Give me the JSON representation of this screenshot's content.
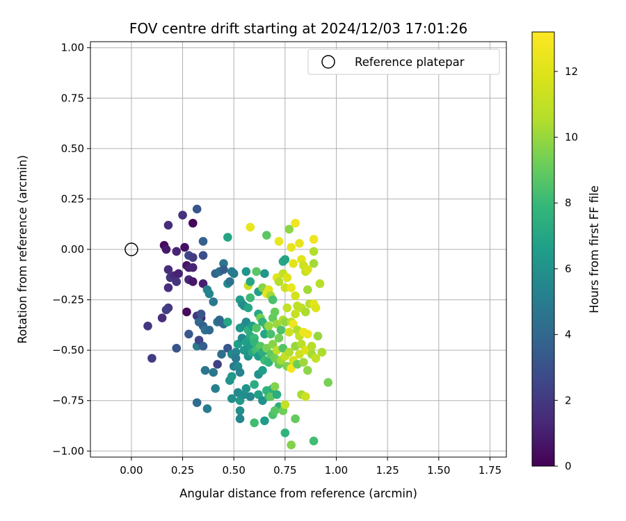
{
  "chart_data": {
    "type": "scatter",
    "title": "FOV centre drift starting at 2024/12/03 17:01:26",
    "xlabel": "Angular distance from reference (arcmin)",
    "ylabel": "Rotation from reference (arcmin)",
    "xlim": [
      -0.2,
      1.83
    ],
    "ylim": [
      -1.03,
      1.03
    ],
    "xticks": [
      "0.00",
      "0.25",
      "0.50",
      "0.75",
      "1.00",
      "1.25",
      "1.50",
      "1.75"
    ],
    "yticks": [
      "1.00",
      "0.75",
      "0.50",
      "0.25",
      "0.00",
      "−0.25",
      "−0.50",
      "−0.75",
      "−1.00"
    ],
    "grid": true,
    "legend": {
      "placement": "top-right",
      "entries": [
        "Reference platepar"
      ]
    },
    "colorbar": {
      "label": "Hours from first FF file",
      "range": [
        0,
        13.2
      ],
      "ticks": [
        "0",
        "2",
        "4",
        "6",
        "8",
        "10",
        "12"
      ],
      "colormap": "viridis"
    },
    "reference_point": {
      "x": 0.0,
      "y": 0.0
    },
    "points": [
      {
        "x": 0.16,
        "y": 0.02,
        "c": 0.3
      },
      {
        "x": 0.17,
        "y": 0.0,
        "c": 0.8
      },
      {
        "x": 0.18,
        "y": 0.12,
        "c": 1.5
      },
      {
        "x": 0.25,
        "y": 0.17,
        "c": 1.7
      },
      {
        "x": 0.3,
        "y": 0.13,
        "c": 0.2
      },
      {
        "x": 0.32,
        "y": 0.2,
        "c": 3.2
      },
      {
        "x": 0.22,
        "y": -0.01,
        "c": 1.2
      },
      {
        "x": 0.26,
        "y": 0.01,
        "c": 0.5
      },
      {
        "x": 0.28,
        "y": -0.03,
        "c": 2.5
      },
      {
        "x": 0.3,
        "y": -0.04,
        "c": 2.1
      },
      {
        "x": 0.35,
        "y": 0.04,
        "c": 3.6
      },
      {
        "x": 0.35,
        "y": -0.03,
        "c": 2.9
      },
      {
        "x": 0.18,
        "y": -0.1,
        "c": 1.5
      },
      {
        "x": 0.19,
        "y": -0.14,
        "c": 1.9
      },
      {
        "x": 0.18,
        "y": -0.19,
        "c": 1.6
      },
      {
        "x": 0.21,
        "y": -0.13,
        "c": 1.4
      },
      {
        "x": 0.23,
        "y": -0.12,
        "c": 1.1
      },
      {
        "x": 0.27,
        "y": -0.08,
        "c": 0.6
      },
      {
        "x": 0.28,
        "y": -0.09,
        "c": 0.9
      },
      {
        "x": 0.3,
        "y": -0.09,
        "c": 1.2
      },
      {
        "x": 0.28,
        "y": -0.15,
        "c": 1.3
      },
      {
        "x": 0.3,
        "y": -0.16,
        "c": 0.7
      },
      {
        "x": 0.35,
        "y": -0.17,
        "c": 1.0
      },
      {
        "x": 0.22,
        "y": -0.16,
        "c": 1.8
      },
      {
        "x": 0.37,
        "y": -0.2,
        "c": 5.2
      },
      {
        "x": 0.38,
        "y": -0.22,
        "c": 5.4
      },
      {
        "x": 0.41,
        "y": -0.12,
        "c": 3.8
      },
      {
        "x": 0.43,
        "y": -0.11,
        "c": 4.3
      },
      {
        "x": 0.45,
        "y": -0.07,
        "c": 4.6
      },
      {
        "x": 0.45,
        "y": -0.1,
        "c": 3.5
      },
      {
        "x": 0.47,
        "y": 0.06,
        "c": 6.9
      },
      {
        "x": 0.47,
        "y": -0.17,
        "c": 5.9
      },
      {
        "x": 0.48,
        "y": -0.16,
        "c": 4.4
      },
      {
        "x": 0.49,
        "y": -0.11,
        "c": 4.9
      },
      {
        "x": 0.5,
        "y": -0.12,
        "c": 5.0
      },
      {
        "x": 0.4,
        "y": -0.26,
        "c": 4.7
      },
      {
        "x": 0.18,
        "y": -0.29,
        "c": 1.9
      },
      {
        "x": 0.17,
        "y": -0.3,
        "c": 2.2
      },
      {
        "x": 0.15,
        "y": -0.34,
        "c": 1.5
      },
      {
        "x": 0.27,
        "y": -0.31,
        "c": 0.3
      },
      {
        "x": 0.32,
        "y": -0.33,
        "c": 2.0
      },
      {
        "x": 0.34,
        "y": -0.34,
        "c": 1.3
      },
      {
        "x": 0.34,
        "y": -0.32,
        "c": 3.2
      },
      {
        "x": 0.33,
        "y": -0.36,
        "c": 4.0
      },
      {
        "x": 0.35,
        "y": -0.38,
        "c": 3.6
      },
      {
        "x": 0.36,
        "y": -0.4,
        "c": 4.4
      },
      {
        "x": 0.38,
        "y": -0.4,
        "c": 4.0
      },
      {
        "x": 0.08,
        "y": -0.38,
        "c": 1.9
      },
      {
        "x": 0.1,
        "y": -0.54,
        "c": 2.1
      },
      {
        "x": 0.22,
        "y": -0.49,
        "c": 3.1
      },
      {
        "x": 0.28,
        "y": -0.42,
        "c": 3.3
      },
      {
        "x": 0.32,
        "y": -0.48,
        "c": 5.0
      },
      {
        "x": 0.33,
        "y": -0.45,
        "c": 2.5
      },
      {
        "x": 0.35,
        "y": -0.48,
        "c": 3.5
      },
      {
        "x": 0.36,
        "y": -0.6,
        "c": 4.6
      },
      {
        "x": 0.4,
        "y": -0.61,
        "c": 4.7
      },
      {
        "x": 0.42,
        "y": -0.57,
        "c": 2.3
      },
      {
        "x": 0.32,
        "y": -0.76,
        "c": 4.1
      },
      {
        "x": 0.37,
        "y": -0.79,
        "c": 4.9
      },
      {
        "x": 0.41,
        "y": -0.69,
        "c": 5.2
      },
      {
        "x": 0.42,
        "y": -0.36,
        "c": 4.4
      },
      {
        "x": 0.43,
        "y": -0.35,
        "c": 3.9
      },
      {
        "x": 0.45,
        "y": -0.37,
        "c": 4.2
      },
      {
        "x": 0.47,
        "y": -0.36,
        "c": 7.0
      },
      {
        "x": 0.44,
        "y": -0.52,
        "c": 4.3
      },
      {
        "x": 0.47,
        "y": -0.49,
        "c": 3.2
      },
      {
        "x": 0.49,
        "y": -0.52,
        "c": 5.6
      },
      {
        "x": 0.51,
        "y": -0.51,
        "c": 5.4
      },
      {
        "x": 0.51,
        "y": -0.54,
        "c": 4.8
      },
      {
        "x": 0.5,
        "y": -0.58,
        "c": 5.0
      },
      {
        "x": 0.52,
        "y": -0.58,
        "c": 5.6
      },
      {
        "x": 0.53,
        "y": -0.61,
        "c": 5.3
      },
      {
        "x": 0.48,
        "y": -0.65,
        "c": 6.1
      },
      {
        "x": 0.49,
        "y": -0.63,
        "c": 6.3
      },
      {
        "x": 0.52,
        "y": -0.71,
        "c": 5.6
      },
      {
        "x": 0.49,
        "y": -0.74,
        "c": 5.9
      },
      {
        "x": 0.53,
        "y": -0.75,
        "c": 6.3
      },
      {
        "x": 0.53,
        "y": -0.8,
        "c": 5.9
      },
      {
        "x": 0.53,
        "y": -0.84,
        "c": 5.5
      },
      {
        "x": 0.55,
        "y": -0.72,
        "c": 5.8
      },
      {
        "x": 0.56,
        "y": -0.69,
        "c": 6.1
      },
      {
        "x": 0.58,
        "y": -0.73,
        "c": 5.6
      },
      {
        "x": 0.6,
        "y": -0.86,
        "c": 8.2
      },
      {
        "x": 0.62,
        "y": -0.72,
        "c": 6.7
      },
      {
        "x": 0.64,
        "y": -0.75,
        "c": 5.9
      },
      {
        "x": 0.65,
        "y": -0.85,
        "c": 6.5
      },
      {
        "x": 0.62,
        "y": -0.62,
        "c": 6.1
      },
      {
        "x": 0.6,
        "y": -0.67,
        "c": 7.3
      },
      {
        "x": 0.64,
        "y": -0.6,
        "c": 6.6
      },
      {
        "x": 0.66,
        "y": -0.7,
        "c": 7.7
      },
      {
        "x": 0.67,
        "y": -0.73,
        "c": 8.0
      },
      {
        "x": 0.68,
        "y": -0.73,
        "c": 8.9
      },
      {
        "x": 0.69,
        "y": -0.69,
        "c": 7.4
      },
      {
        "x": 0.7,
        "y": -0.68,
        "c": 9.6
      },
      {
        "x": 0.71,
        "y": -0.72,
        "c": 7.4
      },
      {
        "x": 0.72,
        "y": -0.78,
        "c": 7.5
      },
      {
        "x": 0.69,
        "y": -0.82,
        "c": 8.4
      },
      {
        "x": 0.7,
        "y": -0.8,
        "c": 8.7
      },
      {
        "x": 0.74,
        "y": -0.8,
        "c": 9.2
      },
      {
        "x": 0.75,
        "y": -0.77,
        "c": 11.1
      },
      {
        "x": 0.75,
        "y": -0.91,
        "c": 7.7
      },
      {
        "x": 0.78,
        "y": -0.97,
        "c": 9.6
      },
      {
        "x": 0.8,
        "y": -0.84,
        "c": 9.0
      },
      {
        "x": 0.83,
        "y": -0.72,
        "c": 10.3
      },
      {
        "x": 0.85,
        "y": -0.73,
        "c": 11.3
      },
      {
        "x": 0.89,
        "y": -0.95,
        "c": 8.2
      },
      {
        "x": 0.96,
        "y": -0.66,
        "c": 9.4
      },
      {
        "x": 0.86,
        "y": -0.6,
        "c": 9.8
      },
      {
        "x": 0.53,
        "y": -0.25,
        "c": 6.6
      },
      {
        "x": 0.54,
        "y": -0.27,
        "c": 6.1
      },
      {
        "x": 0.55,
        "y": -0.28,
        "c": 5.8
      },
      {
        "x": 0.56,
        "y": -0.11,
        "c": 6.2
      },
      {
        "x": 0.57,
        "y": -0.18,
        "c": 11.2
      },
      {
        "x": 0.58,
        "y": -0.16,
        "c": 7.0
      },
      {
        "x": 0.58,
        "y": -0.24,
        "c": 8.1
      },
      {
        "x": 0.57,
        "y": -0.29,
        "c": 7.0
      },
      {
        "x": 0.58,
        "y": 0.11,
        "c": 12.4
      },
      {
        "x": 0.61,
        "y": -0.11,
        "c": 8.8
      },
      {
        "x": 0.62,
        "y": -0.21,
        "c": 6.7
      },
      {
        "x": 0.64,
        "y": -0.19,
        "c": 9.7
      },
      {
        "x": 0.65,
        "y": -0.12,
        "c": 6.2
      },
      {
        "x": 0.66,
        "y": 0.07,
        "c": 8.8
      },
      {
        "x": 0.66,
        "y": -0.22,
        "c": 12.3
      },
      {
        "x": 0.67,
        "y": -0.2,
        "c": 12.0
      },
      {
        "x": 0.68,
        "y": -0.23,
        "c": 10.2
      },
      {
        "x": 0.69,
        "y": -0.25,
        "c": 8.4
      },
      {
        "x": 0.71,
        "y": -0.14,
        "c": 12.2
      },
      {
        "x": 0.72,
        "y": -0.16,
        "c": 10.6
      },
      {
        "x": 0.72,
        "y": 0.04,
        "c": 12.4
      },
      {
        "x": 0.74,
        "y": -0.06,
        "c": 7.1
      },
      {
        "x": 0.74,
        "y": -0.12,
        "c": 11.0
      },
      {
        "x": 0.75,
        "y": -0.19,
        "c": 11.4
      },
      {
        "x": 0.75,
        "y": -0.05,
        "c": 6.9
      },
      {
        "x": 0.76,
        "y": -0.14,
        "c": 12.0
      },
      {
        "x": 0.77,
        "y": 0.1,
        "c": 9.8
      },
      {
        "x": 0.78,
        "y": 0.01,
        "c": 12.3
      },
      {
        "x": 0.78,
        "y": -0.19,
        "c": 12.4
      },
      {
        "x": 0.79,
        "y": -0.07,
        "c": 12.1
      },
      {
        "x": 0.8,
        "y": 0.13,
        "c": 12.7
      },
      {
        "x": 0.8,
        "y": -0.23,
        "c": 11.6
      },
      {
        "x": 0.81,
        "y": -0.28,
        "c": 10.8
      },
      {
        "x": 0.82,
        "y": 0.03,
        "c": 12.3
      },
      {
        "x": 0.83,
        "y": -0.05,
        "c": 12.1
      },
      {
        "x": 0.84,
        "y": -0.08,
        "c": 11.3
      },
      {
        "x": 0.85,
        "y": -0.11,
        "c": 11.1
      },
      {
        "x": 0.86,
        "y": -0.2,
        "c": 10.2
      },
      {
        "x": 0.86,
        "y": -0.1,
        "c": 11.7
      },
      {
        "x": 0.87,
        "y": -0.27,
        "c": 10.6
      },
      {
        "x": 0.89,
        "y": 0.05,
        "c": 12.6
      },
      {
        "x": 0.89,
        "y": -0.01,
        "c": 10.5
      },
      {
        "x": 0.89,
        "y": -0.07,
        "c": 10.2
      },
      {
        "x": 0.89,
        "y": -0.27,
        "c": 12.2
      },
      {
        "x": 0.9,
        "y": -0.29,
        "c": 11.9
      },
      {
        "x": 0.92,
        "y": -0.17,
        "c": 10.6
      },
      {
        "x": 0.53,
        "y": -0.39,
        "c": 6.3
      },
      {
        "x": 0.55,
        "y": -0.38,
        "c": 6.1
      },
      {
        "x": 0.56,
        "y": -0.36,
        "c": 5.7
      },
      {
        "x": 0.57,
        "y": -0.4,
        "c": 7.5
      },
      {
        "x": 0.58,
        "y": -0.43,
        "c": 7.3
      },
      {
        "x": 0.59,
        "y": -0.38,
        "c": 6.7
      },
      {
        "x": 0.6,
        "y": -0.44,
        "c": 8.1
      },
      {
        "x": 0.61,
        "y": -0.39,
        "c": 8.6
      },
      {
        "x": 0.62,
        "y": -0.32,
        "c": 7.1
      },
      {
        "x": 0.63,
        "y": -0.34,
        "c": 9.4
      },
      {
        "x": 0.64,
        "y": -0.36,
        "c": 7.6
      },
      {
        "x": 0.65,
        "y": -0.42,
        "c": 7.0
      },
      {
        "x": 0.66,
        "y": -0.38,
        "c": 8.0
      },
      {
        "x": 0.67,
        "y": -0.38,
        "c": 10.0
      },
      {
        "x": 0.68,
        "y": -0.42,
        "c": 8.4
      },
      {
        "x": 0.69,
        "y": -0.34,
        "c": 9.0
      },
      {
        "x": 0.7,
        "y": -0.31,
        "c": 9.1
      },
      {
        "x": 0.71,
        "y": -0.37,
        "c": 10.1
      },
      {
        "x": 0.72,
        "y": -0.44,
        "c": 9.3
      },
      {
        "x": 0.73,
        "y": -0.4,
        "c": 8.5
      },
      {
        "x": 0.74,
        "y": -0.35,
        "c": 10.5
      },
      {
        "x": 0.75,
        "y": -0.36,
        "c": 9.9
      },
      {
        "x": 0.76,
        "y": -0.29,
        "c": 11.0
      },
      {
        "x": 0.77,
        "y": -0.41,
        "c": 11.4
      },
      {
        "x": 0.78,
        "y": -0.36,
        "c": 10.7
      },
      {
        "x": 0.79,
        "y": -0.37,
        "c": 12.5
      },
      {
        "x": 0.8,
        "y": -0.32,
        "c": 11.2
      },
      {
        "x": 0.81,
        "y": -0.4,
        "c": 10.5
      },
      {
        "x": 0.82,
        "y": -0.43,
        "c": 11.0
      },
      {
        "x": 0.83,
        "y": -0.29,
        "c": 10.9
      },
      {
        "x": 0.84,
        "y": -0.41,
        "c": 12.6
      },
      {
        "x": 0.85,
        "y": -0.31,
        "c": 10.4
      },
      {
        "x": 0.86,
        "y": -0.42,
        "c": 12.5
      },
      {
        "x": 0.91,
        "y": -0.43,
        "c": 10.0
      },
      {
        "x": 0.52,
        "y": -0.47,
        "c": 6.6
      },
      {
        "x": 0.54,
        "y": -0.44,
        "c": 5.6
      },
      {
        "x": 0.55,
        "y": -0.5,
        "c": 6.3
      },
      {
        "x": 0.56,
        "y": -0.46,
        "c": 6.7
      },
      {
        "x": 0.57,
        "y": -0.53,
        "c": 6.0
      },
      {
        "x": 0.58,
        "y": -0.48,
        "c": 6.4
      },
      {
        "x": 0.59,
        "y": -0.51,
        "c": 7.2
      },
      {
        "x": 0.6,
        "y": -0.46,
        "c": 7.8
      },
      {
        "x": 0.61,
        "y": -0.5,
        "c": 8.2
      },
      {
        "x": 0.62,
        "y": -0.53,
        "c": 6.5
      },
      {
        "x": 0.63,
        "y": -0.48,
        "c": 8.7
      },
      {
        "x": 0.64,
        "y": -0.51,
        "c": 7.4
      },
      {
        "x": 0.65,
        "y": -0.55,
        "c": 8.1
      },
      {
        "x": 0.66,
        "y": -0.49,
        "c": 9.4
      },
      {
        "x": 0.67,
        "y": -0.56,
        "c": 7.7
      },
      {
        "x": 0.68,
        "y": -0.52,
        "c": 8.9
      },
      {
        "x": 0.69,
        "y": -0.47,
        "c": 9.7
      },
      {
        "x": 0.7,
        "y": -0.54,
        "c": 9.3
      },
      {
        "x": 0.71,
        "y": -0.5,
        "c": 10.8
      },
      {
        "x": 0.72,
        "y": -0.57,
        "c": 9.0
      },
      {
        "x": 0.73,
        "y": -0.55,
        "c": 10.2
      },
      {
        "x": 0.74,
        "y": -0.49,
        "c": 8.6
      },
      {
        "x": 0.75,
        "y": -0.53,
        "c": 11.1
      },
      {
        "x": 0.76,
        "y": -0.58,
        "c": 9.6
      },
      {
        "x": 0.77,
        "y": -0.51,
        "c": 10.5
      },
      {
        "x": 0.78,
        "y": -0.59,
        "c": 12.8
      },
      {
        "x": 0.79,
        "y": -0.55,
        "c": 11.6
      },
      {
        "x": 0.8,
        "y": -0.48,
        "c": 10.0
      },
      {
        "x": 0.81,
        "y": -0.57,
        "c": 9.2
      },
      {
        "x": 0.82,
        "y": -0.52,
        "c": 11.3
      },
      {
        "x": 0.83,
        "y": -0.47,
        "c": 10.7
      },
      {
        "x": 0.84,
        "y": -0.56,
        "c": 10.1
      },
      {
        "x": 0.85,
        "y": -0.5,
        "c": 11.9
      },
      {
        "x": 0.88,
        "y": -0.52,
        "c": 10.3
      },
      {
        "x": 0.9,
        "y": -0.54,
        "c": 11.0
      },
      {
        "x": 0.93,
        "y": -0.51,
        "c": 10.4
      },
      {
        "x": 0.88,
        "y": -0.48,
        "c": 10.6
      }
    ]
  }
}
